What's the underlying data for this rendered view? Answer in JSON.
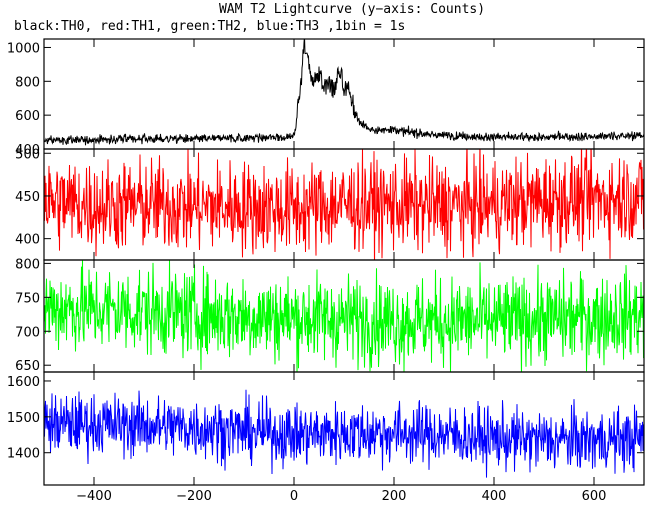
{
  "chart_data": {
    "type": "line",
    "title": "WAM T2 Lightcurve (y−axis: Counts)",
    "subtitle": "black:TH0, red:TH1, green:TH2, blue:TH3 ,1bin = 1s",
    "xlim": [
      -500,
      700
    ],
    "x_ticks": [
      -400,
      -200,
      0,
      200,
      400,
      600
    ],
    "x_tick_labels": [
      "−400",
      "−200",
      "0",
      "200",
      "400",
      "600"
    ],
    "bin_seconds": 1,
    "panels": [
      {
        "name": "TH0",
        "color": "#000000",
        "ylim": [
          400,
          1050
        ],
        "y_ticks": [
          400,
          600,
          800,
          1000
        ],
        "points": [
          [
            -500,
            450
          ],
          [
            -400,
            455
          ],
          [
            -300,
            460
          ],
          [
            -200,
            460
          ],
          [
            -100,
            465
          ],
          [
            -20,
            470
          ],
          [
            0,
            480
          ],
          [
            5,
            560
          ],
          [
            10,
            700
          ],
          [
            15,
            850
          ],
          [
            20,
            1010
          ],
          [
            25,
            960
          ],
          [
            30,
            880
          ],
          [
            40,
            800
          ],
          [
            50,
            860
          ],
          [
            60,
            760
          ],
          [
            70,
            780
          ],
          [
            80,
            740
          ],
          [
            90,
            870
          ],
          [
            100,
            760
          ],
          [
            110,
            720
          ],
          [
            120,
            640
          ],
          [
            130,
            560
          ],
          [
            140,
            540
          ],
          [
            150,
            520
          ],
          [
            170,
            510
          ],
          [
            200,
            520
          ],
          [
            220,
            505
          ],
          [
            250,
            490
          ],
          [
            300,
            480
          ],
          [
            400,
            470
          ],
          [
            500,
            470
          ],
          [
            600,
            475
          ],
          [
            700,
            480
          ]
        ]
      },
      {
        "name": "TH1",
        "color": "#ff0000",
        "ylim": [
          375,
          505
        ],
        "y_ticks": [
          400,
          450,
          500
        ],
        "points": [
          [
            -500,
            445
          ],
          [
            -400,
            438
          ],
          [
            -300,
            440
          ],
          [
            -200,
            438
          ],
          [
            -100,
            437
          ],
          [
            0,
            435
          ],
          [
            100,
            440
          ],
          [
            200,
            440
          ],
          [
            300,
            438
          ],
          [
            400,
            440
          ],
          [
            500,
            445
          ],
          [
            600,
            447
          ],
          [
            700,
            450
          ]
        ]
      },
      {
        "name": "TH2",
        "color": "#00ff00",
        "ylim": [
          640,
          805
        ],
        "y_ticks": [
          650,
          700,
          750,
          800
        ],
        "points": [
          [
            -500,
            735
          ],
          [
            -400,
            732
          ],
          [
            -300,
            730
          ],
          [
            -200,
            725
          ],
          [
            -100,
            722
          ],
          [
            0,
            720
          ],
          [
            100,
            718
          ],
          [
            200,
            715
          ],
          [
            300,
            715
          ],
          [
            400,
            715
          ],
          [
            500,
            718
          ],
          [
            600,
            720
          ],
          [
            700,
            725
          ]
        ]
      },
      {
        "name": "TH3",
        "color": "#0000ff",
        "ylim": [
          1310,
          1625
        ],
        "y_ticks": [
          1400,
          1500,
          1600
        ],
        "points": [
          [
            -500,
            1480
          ],
          [
            -400,
            1480
          ],
          [
            -300,
            1475
          ],
          [
            -200,
            1470
          ],
          [
            -100,
            1460
          ],
          [
            0,
            1450
          ],
          [
            100,
            1455
          ],
          [
            200,
            1455
          ],
          [
            300,
            1450
          ],
          [
            400,
            1440
          ],
          [
            500,
            1435
          ],
          [
            600,
            1435
          ],
          [
            700,
            1440
          ]
        ]
      }
    ],
    "noise_amplitude": [
      30,
      38,
      45,
      60
    ]
  }
}
